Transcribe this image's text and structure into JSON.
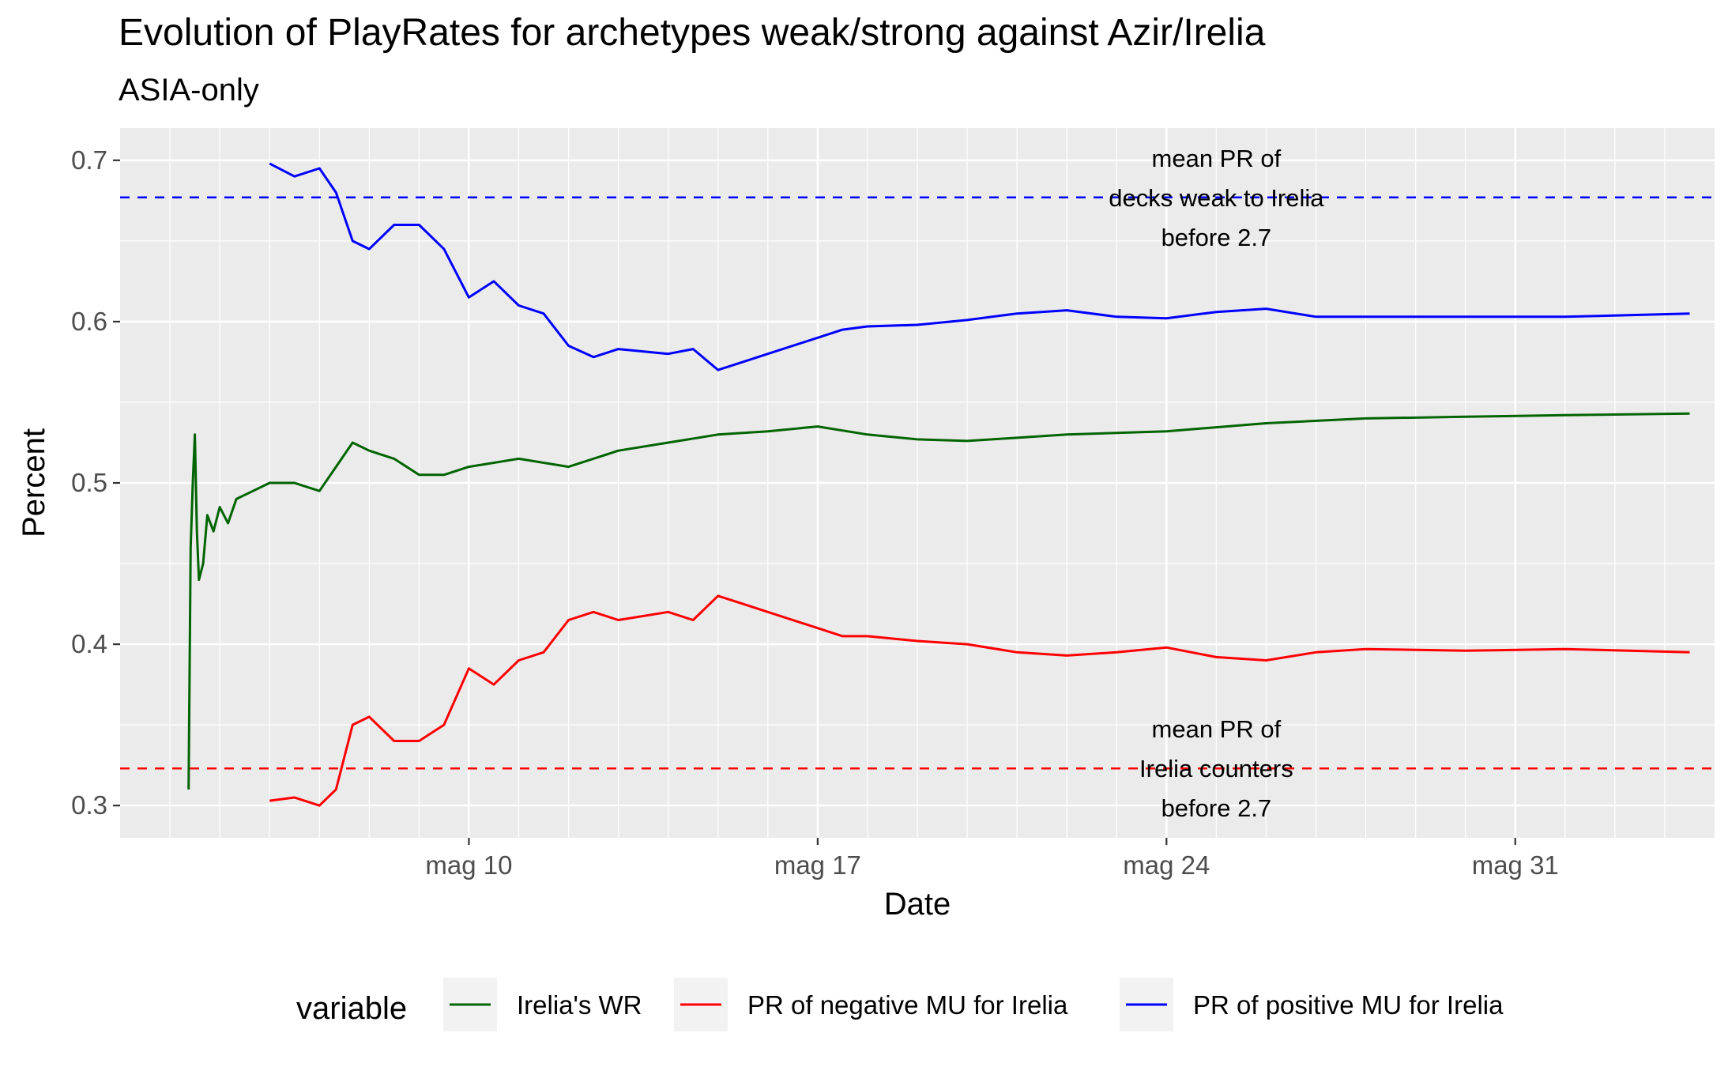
{
  "title": "Evolution of PlayRates for archetypes weak/strong against Azir/Irelia",
  "subtitle": "ASIA-only",
  "chart_data": {
    "type": "line",
    "xlabel": "Date",
    "ylabel": "Percent",
    "x_range": [
      "2021-05-03",
      "2021-06-04"
    ],
    "ylim": [
      0.28,
      0.72
    ],
    "x_ticks": [
      {
        "date": "2021-05-10",
        "label": "mag 10"
      },
      {
        "date": "2021-05-17",
        "label": "mag 17"
      },
      {
        "date": "2021-05-24",
        "label": "mag 24"
      },
      {
        "date": "2021-05-31",
        "label": "mag 31"
      }
    ],
    "y_ticks": [
      {
        "value": 0.3,
        "label": "0.3"
      },
      {
        "value": 0.4,
        "label": "0.4"
      },
      {
        "value": 0.5,
        "label": "0.5"
      },
      {
        "value": 0.6,
        "label": "0.6"
      },
      {
        "value": 0.7,
        "label": "0.7"
      }
    ],
    "grid": true,
    "legend": {
      "title": "variable",
      "placement": "bottom",
      "entries": [
        "Irelia's WR",
        "PR of negative MU for Irelia",
        "PR of positive MU for Irelia"
      ]
    },
    "series": [
      {
        "name": "Irelia's WR",
        "color": "#006400",
        "points": [
          [
            "2021-05-04 09:00",
            0.31
          ],
          [
            "2021-05-04 10:00",
            0.46
          ],
          [
            "2021-05-04 11:00",
            0.5
          ],
          [
            "2021-05-04 12:00",
            0.53
          ],
          [
            "2021-05-04 13:00",
            0.47
          ],
          [
            "2021-05-04 14:00",
            0.44
          ],
          [
            "2021-05-04 16:00",
            0.45
          ],
          [
            "2021-05-04 18:00",
            0.48
          ],
          [
            "2021-05-04 21:00",
            0.47
          ],
          [
            "2021-05-05 00:00",
            0.485
          ],
          [
            "2021-05-05 04:00",
            0.475
          ],
          [
            "2021-05-05 08:00",
            0.49
          ],
          [
            "2021-05-05 16:00",
            0.495
          ],
          [
            "2021-05-06 00:00",
            0.5
          ],
          [
            "2021-05-06 12:00",
            0.5
          ],
          [
            "2021-05-07 00:00",
            0.495
          ],
          [
            "2021-05-07 08:00",
            0.51
          ],
          [
            "2021-05-07 16:00",
            0.525
          ],
          [
            "2021-05-08 00:00",
            0.52
          ],
          [
            "2021-05-08 12:00",
            0.515
          ],
          [
            "2021-05-09 00:00",
            0.505
          ],
          [
            "2021-05-09 12:00",
            0.505
          ],
          [
            "2021-05-10 00:00",
            0.51
          ],
          [
            "2021-05-11 00:00",
            0.515
          ],
          [
            "2021-05-12 00:00",
            0.51
          ],
          [
            "2021-05-13 00:00",
            0.52
          ],
          [
            "2021-05-14 00:00",
            0.525
          ],
          [
            "2021-05-15 00:00",
            0.53
          ],
          [
            "2021-05-16 00:00",
            0.532
          ],
          [
            "2021-05-17 00:00",
            0.535
          ],
          [
            "2021-05-18 00:00",
            0.53
          ],
          [
            "2021-05-19 00:00",
            0.527
          ],
          [
            "2021-05-20 00:00",
            0.526
          ],
          [
            "2021-05-21 00:00",
            0.528
          ],
          [
            "2021-05-22 00:00",
            0.53
          ],
          [
            "2021-05-24 00:00",
            0.532
          ],
          [
            "2021-05-26 00:00",
            0.537
          ],
          [
            "2021-05-28 00:00",
            0.54
          ],
          [
            "2021-05-30 00:00",
            0.541
          ],
          [
            "2021-06-01 00:00",
            0.542
          ],
          [
            "2021-06-03 12:00",
            0.543
          ]
        ]
      },
      {
        "name": "PR of negative MU for Irelia",
        "color": "#ff0000",
        "points": [
          [
            "2021-05-06 00:00",
            0.303
          ],
          [
            "2021-05-06 12:00",
            0.305
          ],
          [
            "2021-05-07 00:00",
            0.3
          ],
          [
            "2021-05-07 08:00",
            0.31
          ],
          [
            "2021-05-07 16:00",
            0.35
          ],
          [
            "2021-05-08 00:00",
            0.355
          ],
          [
            "2021-05-08 12:00",
            0.34
          ],
          [
            "2021-05-09 00:00",
            0.34
          ],
          [
            "2021-05-09 12:00",
            0.35
          ],
          [
            "2021-05-10 00:00",
            0.385
          ],
          [
            "2021-05-10 12:00",
            0.375
          ],
          [
            "2021-05-11 00:00",
            0.39
          ],
          [
            "2021-05-11 12:00",
            0.395
          ],
          [
            "2021-05-12 00:00",
            0.415
          ],
          [
            "2021-05-12 12:00",
            0.42
          ],
          [
            "2021-05-13 00:00",
            0.415
          ],
          [
            "2021-05-14 00:00",
            0.42
          ],
          [
            "2021-05-14 12:00",
            0.415
          ],
          [
            "2021-05-15 00:00",
            0.43
          ],
          [
            "2021-05-15 12:00",
            0.425
          ],
          [
            "2021-05-16 00:00",
            0.42
          ],
          [
            "2021-05-17 00:00",
            0.41
          ],
          [
            "2021-05-17 12:00",
            0.405
          ],
          [
            "2021-05-18 00:00",
            0.405
          ],
          [
            "2021-05-19 00:00",
            0.402
          ],
          [
            "2021-05-20 00:00",
            0.4
          ],
          [
            "2021-05-21 00:00",
            0.395
          ],
          [
            "2021-05-22 00:00",
            0.393
          ],
          [
            "2021-05-23 00:00",
            0.395
          ],
          [
            "2021-05-24 00:00",
            0.398
          ],
          [
            "2021-05-25 00:00",
            0.392
          ],
          [
            "2021-05-26 00:00",
            0.39
          ],
          [
            "2021-05-27 00:00",
            0.395
          ],
          [
            "2021-05-28 00:00",
            0.397
          ],
          [
            "2021-05-30 00:00",
            0.396
          ],
          [
            "2021-06-01 00:00",
            0.397
          ],
          [
            "2021-06-03 12:00",
            0.395
          ]
        ]
      },
      {
        "name": "PR of positive MU for Irelia",
        "color": "#0000ff",
        "points": [
          [
            "2021-05-06 00:00",
            0.698
          ],
          [
            "2021-05-06 12:00",
            0.69
          ],
          [
            "2021-05-07 00:00",
            0.695
          ],
          [
            "2021-05-07 08:00",
            0.68
          ],
          [
            "2021-05-07 16:00",
            0.65
          ],
          [
            "2021-05-08 00:00",
            0.645
          ],
          [
            "2021-05-08 12:00",
            0.66
          ],
          [
            "2021-05-09 00:00",
            0.66
          ],
          [
            "2021-05-09 12:00",
            0.645
          ],
          [
            "2021-05-10 00:00",
            0.615
          ],
          [
            "2021-05-10 12:00",
            0.625
          ],
          [
            "2021-05-11 00:00",
            0.61
          ],
          [
            "2021-05-11 12:00",
            0.605
          ],
          [
            "2021-05-12 00:00",
            0.585
          ],
          [
            "2021-05-12 12:00",
            0.578
          ],
          [
            "2021-05-13 00:00",
            0.583
          ],
          [
            "2021-05-14 00:00",
            0.58
          ],
          [
            "2021-05-14 12:00",
            0.583
          ],
          [
            "2021-05-15 00:00",
            0.57
          ],
          [
            "2021-05-15 12:00",
            0.575
          ],
          [
            "2021-05-16 00:00",
            0.58
          ],
          [
            "2021-05-17 00:00",
            0.59
          ],
          [
            "2021-05-17 12:00",
            0.595
          ],
          [
            "2021-05-18 00:00",
            0.597
          ],
          [
            "2021-05-19 00:00",
            0.598
          ],
          [
            "2021-05-20 00:00",
            0.601
          ],
          [
            "2021-05-21 00:00",
            0.605
          ],
          [
            "2021-05-22 00:00",
            0.607
          ],
          [
            "2021-05-23 00:00",
            0.603
          ],
          [
            "2021-05-24 00:00",
            0.602
          ],
          [
            "2021-05-25 00:00",
            0.606
          ],
          [
            "2021-05-26 00:00",
            0.608
          ],
          [
            "2021-05-27 00:00",
            0.603
          ],
          [
            "2021-05-28 00:00",
            0.603
          ],
          [
            "2021-05-30 00:00",
            0.603
          ],
          [
            "2021-06-01 00:00",
            0.603
          ],
          [
            "2021-06-03 12:00",
            0.605
          ]
        ]
      }
    ],
    "hlines": [
      {
        "y": 0.677,
        "color": "#0000ff",
        "style": "dashed"
      },
      {
        "y": 0.323,
        "color": "#ff0000",
        "style": "dashed"
      }
    ],
    "annotations": [
      {
        "lines": [
          "mean PR of",
          "decks weak to Irelia",
          "before 2.7"
        ],
        "x": "2021-05-25 00:00",
        "y": 0.677
      },
      {
        "lines": [
          "mean PR of",
          "Irelia counters",
          "before 2.7"
        ],
        "x": "2021-05-25 00:00",
        "y": 0.323
      }
    ]
  }
}
